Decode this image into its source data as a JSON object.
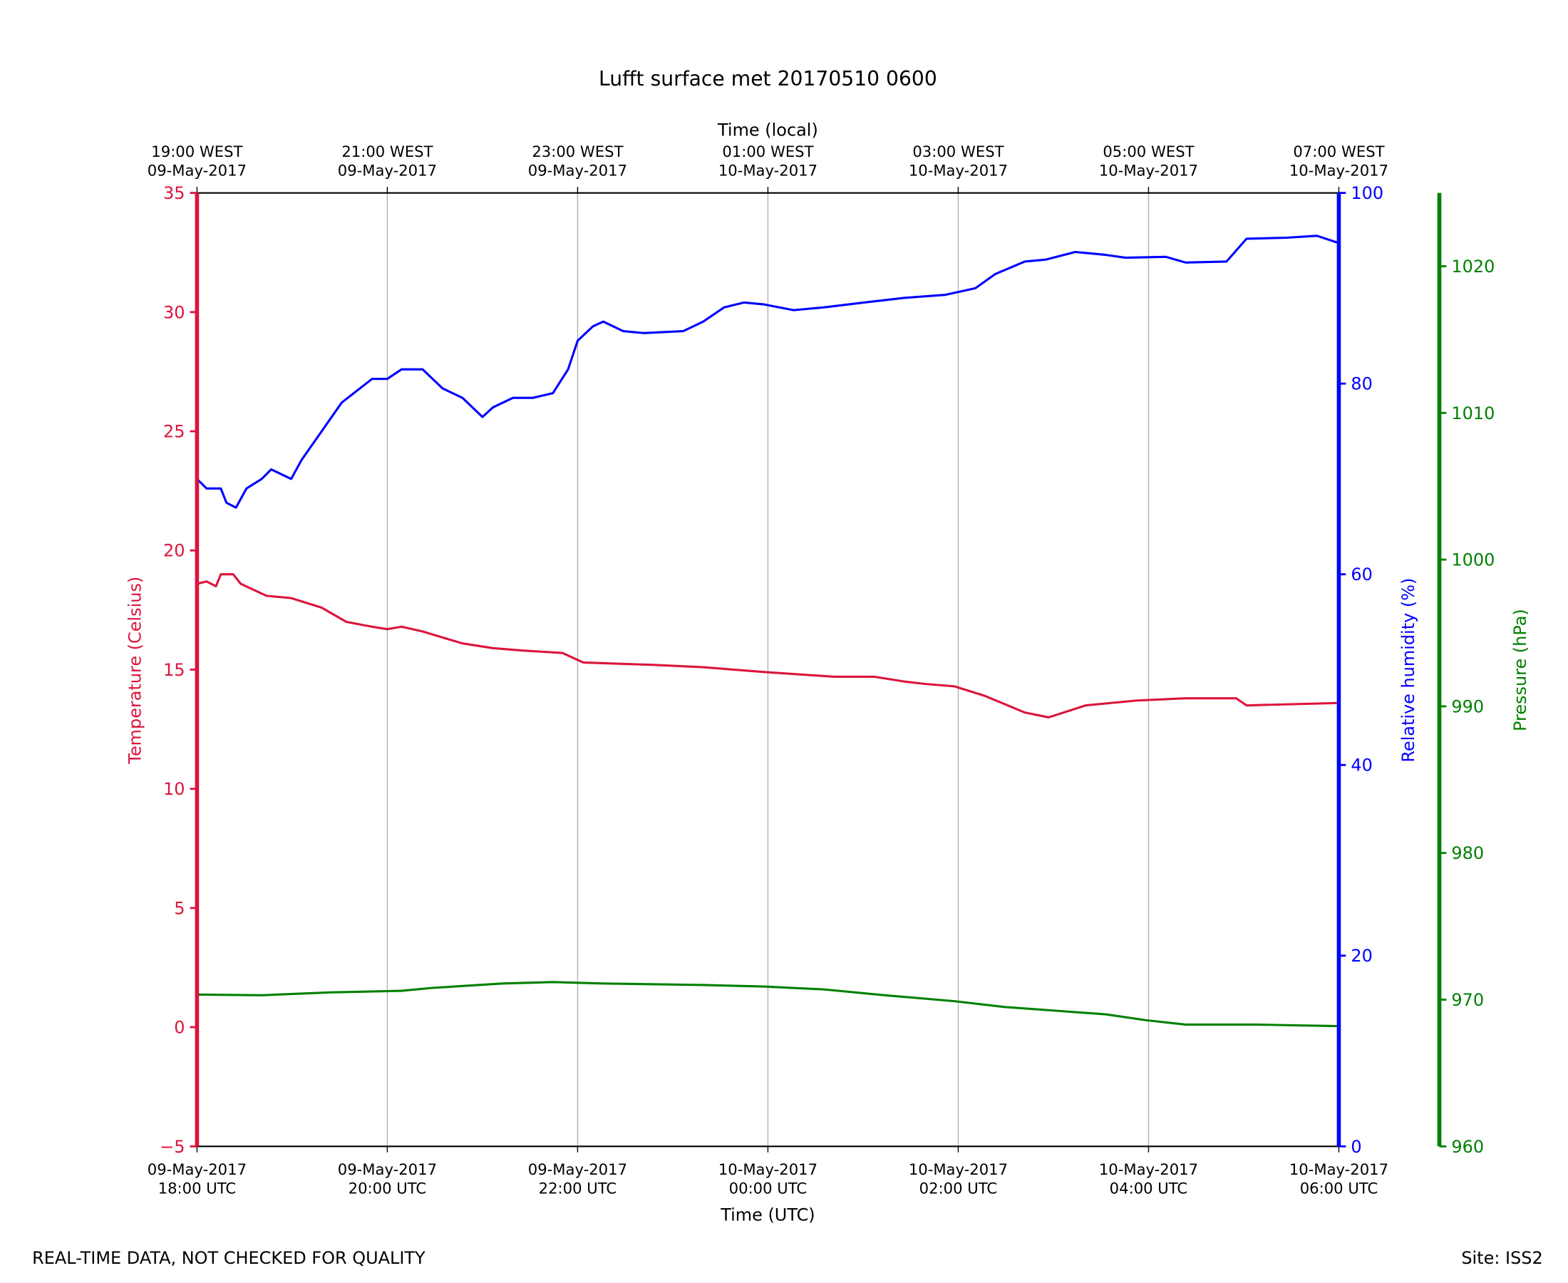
{
  "chart_data": {
    "type": "line",
    "title": "Lufft surface met 20170510 0600",
    "xlabel": "Time (UTC)",
    "xlabel_top": "Time (local)",
    "x_unit": "hours since 09-May-2017 18:00 UTC",
    "xlim": [
      0,
      12
    ],
    "x_ticks": [
      0,
      2,
      4,
      6,
      8,
      10,
      12
    ],
    "x_tick_labels_bottom": [
      [
        "09-May-2017",
        "18:00 UTC"
      ],
      [
        "09-May-2017",
        "20:00 UTC"
      ],
      [
        "09-May-2017",
        "22:00 UTC"
      ],
      [
        "10-May-2017",
        "00:00 UTC"
      ],
      [
        "10-May-2017",
        "02:00 UTC"
      ],
      [
        "10-May-2017",
        "04:00 UTC"
      ],
      [
        "10-May-2017",
        "06:00 UTC"
      ]
    ],
    "x_tick_labels_top": [
      [
        "19:00 WEST",
        "09-May-2017"
      ],
      [
        "21:00 WEST",
        "09-May-2017"
      ],
      [
        "23:00 WEST",
        "09-May-2017"
      ],
      [
        "01:00 WEST",
        "10-May-2017"
      ],
      [
        "03:00 WEST",
        "10-May-2017"
      ],
      [
        "05:00 WEST",
        "10-May-2017"
      ],
      [
        "07:00 WEST",
        "10-May-2017"
      ]
    ],
    "grid": "vertical",
    "axes": {
      "temperature": {
        "label": "Temperature (Celsius)",
        "ylim": [
          -5,
          35
        ],
        "ticks": [
          -5,
          0,
          5,
          10,
          15,
          20,
          25,
          30,
          35
        ],
        "tick_labels": [
          "−5",
          "0",
          "5",
          "10",
          "15",
          "20",
          "25",
          "30",
          "35"
        ],
        "color": "#dc143c",
        "side": "left"
      },
      "humidity": {
        "label": "Relative humidity (%)",
        "ylim": [
          0,
          100
        ],
        "ticks": [
          0,
          20,
          40,
          60,
          80,
          100
        ],
        "tick_labels": [
          "0",
          "20",
          "40",
          "60",
          "80",
          "100"
        ],
        "color": "#0000ff",
        "side": "right"
      },
      "pressure": {
        "label": "Pressure (hPa)",
        "ylim": [
          960,
          1025
        ],
        "ticks": [
          960,
          970,
          980,
          990,
          1000,
          1010,
          1020
        ],
        "tick_labels": [
          "960",
          "970",
          "980",
          "990",
          "1000",
          "1010",
          "1020"
        ],
        "color": "#008000",
        "side": "right-outer"
      }
    },
    "series": [
      {
        "name": "Temperature",
        "axis": "temperature",
        "color": "#dc143c",
        "x": [
          0,
          0.1,
          0.2,
          0.25,
          0.38,
          0.46,
          0.73,
          0.99,
          1.31,
          1.57,
          1.84,
          2.0,
          2.15,
          2.37,
          2.79,
          3.11,
          3.42,
          3.84,
          4.06,
          4.8,
          5.32,
          5.96,
          6.7,
          7.12,
          7.44,
          7.65,
          7.96,
          8.28,
          8.7,
          8.95,
          9.34,
          9.87,
          10.39,
          10.92,
          11.03,
          11.98
        ],
        "y": [
          18.6,
          18.7,
          18.5,
          19.0,
          19.0,
          18.6,
          18.1,
          18.0,
          17.6,
          17.0,
          16.8,
          16.7,
          16.8,
          16.6,
          16.1,
          15.9,
          15.8,
          15.7,
          15.3,
          15.2,
          15.1,
          14.9,
          14.7,
          14.7,
          14.5,
          14.4,
          14.3,
          13.9,
          13.2,
          13.0,
          13.5,
          13.7,
          13.8,
          13.8,
          13.5,
          13.6
        ]
      },
      {
        "name": "Relative humidity",
        "axis": "humidity",
        "color": "#0000ff",
        "x": [
          0,
          0.1,
          0.25,
          0.31,
          0.41,
          0.52,
          0.68,
          0.78,
          0.99,
          1.1,
          1.31,
          1.52,
          1.84,
          2.0,
          2.15,
          2.37,
          2.58,
          2.79,
          3.0,
          3.11,
          3.32,
          3.53,
          3.74,
          3.9,
          4.0,
          4.16,
          4.27,
          4.48,
          4.69,
          5.11,
          5.32,
          5.54,
          5.75,
          5.96,
          6.27,
          6.59,
          7.01,
          7.44,
          7.86,
          8.18,
          8.39,
          8.7,
          8.92,
          9.23,
          9.55,
          9.76,
          10.18,
          10.39,
          10.82,
          11.03,
          11.45,
          11.77,
          11.98
        ],
        "y": [
          70,
          69,
          69,
          67.5,
          67,
          69,
          70,
          71,
          70,
          72,
          75,
          78,
          80.5,
          80.5,
          81.5,
          81.5,
          79.5,
          78.5,
          76.5,
          77.5,
          78.5,
          78.5,
          79,
          81.5,
          84.5,
          86,
          86.5,
          85.5,
          85.3,
          85.5,
          86.5,
          88,
          88.5,
          88.3,
          87.7,
          88,
          88.5,
          89,
          89.3,
          90,
          91.5,
          92.8,
          93,
          93.8,
          93.5,
          93.2,
          93.3,
          92.7,
          92.8,
          95.2,
          95.3,
          95.5,
          94.8
        ]
      },
      {
        "name": "Pressure",
        "axis": "pressure",
        "color": "#008000",
        "x": [
          0,
          0.68,
          1.42,
          2.15,
          2.47,
          3.21,
          3.74,
          4.27,
          5.32,
          5.96,
          6.59,
          7.23,
          7.96,
          8.49,
          9.13,
          9.55,
          9.97,
          10.39,
          11.13,
          11.98
        ],
        "y": [
          970.35,
          970.3,
          970.5,
          970.6,
          970.8,
          971.1,
          971.2,
          971.1,
          971.0,
          970.9,
          970.7,
          970.3,
          969.9,
          969.5,
          969.2,
          969.0,
          968.6,
          968.3,
          968.3,
          968.2
        ]
      }
    ]
  },
  "footer": {
    "disclaimer": "REAL-TIME DATA, NOT CHECKED FOR QUALITY",
    "site": "Site: ISS2"
  }
}
